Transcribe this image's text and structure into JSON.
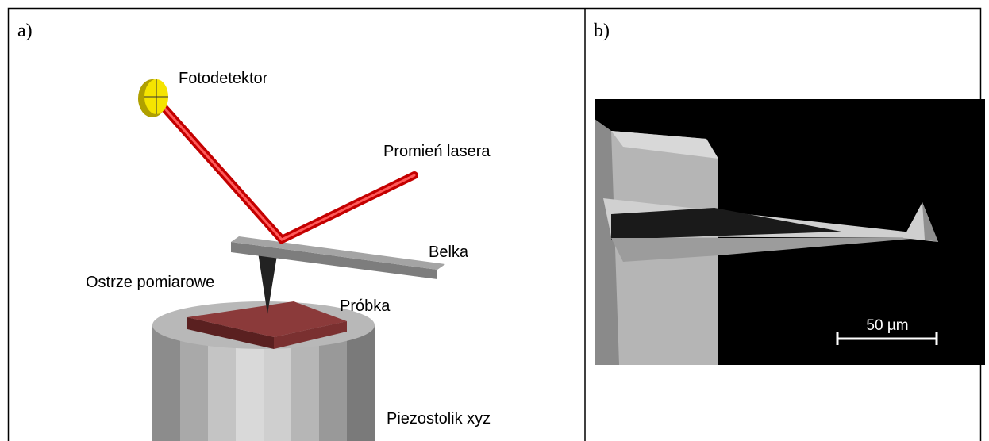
{
  "panels": [
    {
      "label": "a)",
      "annotations": [
        "Fotodetektor",
        "Promień lasera",
        "Belka",
        "Ostrze pomiarowe",
        "Próbka",
        "Piezostolik xyz"
      ]
    },
    {
      "label": "b)",
      "scale_bar": "50 µm"
    }
  ]
}
